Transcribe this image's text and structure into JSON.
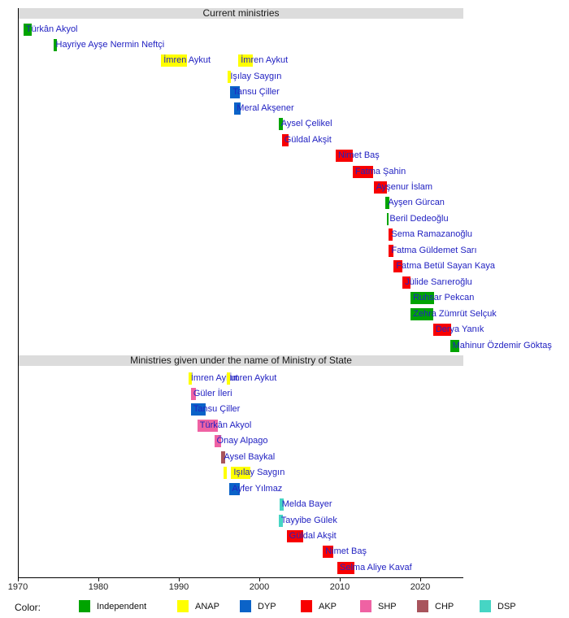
{
  "chart_data": {
    "type": "timeline-gantt",
    "title": "",
    "x_axis": {
      "min": 1970,
      "max": 2025.4,
      "ticks": [
        1970,
        1980,
        1990,
        2000,
        2010,
        2020
      ],
      "grid": false
    },
    "legend": {
      "label": "Color:",
      "position": "bottom",
      "parties": [
        {
          "name": "Independent",
          "color": "#00a400"
        },
        {
          "name": "ANAP",
          "color": "#ffff00"
        },
        {
          "name": "DYP",
          "color": "#0b63c8"
        },
        {
          "name": "AKP",
          "color": "#f80000"
        },
        {
          "name": "SHP",
          "color": "#ef62a3"
        },
        {
          "name": "CHP",
          "color": "#a8545c"
        },
        {
          "name": "DSP",
          "color": "#46d5c4"
        }
      ]
    },
    "sections": [
      {
        "title": "Current ministries",
        "rows": [
          {
            "name": "Türkân Akyol",
            "party": "Independent",
            "bars": [
              {
                "start": 1970.7,
                "end": 1971.7,
                "label": true
              }
            ]
          },
          {
            "name": "Hayriye Ayşe Nermin Neftçi",
            "party": "Independent",
            "bars": [
              {
                "start": 1974.4,
                "end": 1974.9,
                "label": true
              }
            ]
          },
          {
            "name": "İmren Aykut",
            "party": "ANAP",
            "bars": [
              {
                "start": 1987.8,
                "end": 1991.0,
                "label": true
              },
              {
                "start": 1997.4,
                "end": 1999.2,
                "label": true
              }
            ]
          },
          {
            "name": "Işılay Saygın",
            "party": "ANAP",
            "bars": [
              {
                "start": 1996.1,
                "end": 1996.5,
                "label": true
              }
            ]
          },
          {
            "name": "Tansu Çiller",
            "party": "DYP",
            "bars": [
              {
                "start": 1996.4,
                "end": 1997.6,
                "label": true
              }
            ]
          },
          {
            "name": "Meral Akşener",
            "party": "DYP",
            "bars": [
              {
                "start": 1996.9,
                "end": 1997.7,
                "label": true
              }
            ]
          },
          {
            "name": "Aysel Çelikel",
            "party": "Independent",
            "bars": [
              {
                "start": 2002.4,
                "end": 2002.9,
                "label": true
              }
            ]
          },
          {
            "name": "Güldal Akşit",
            "party": "AKP",
            "bars": [
              {
                "start": 2002.8,
                "end": 2003.6,
                "label": true
              }
            ]
          },
          {
            "name": "Nimet Baş",
            "party": "AKP",
            "bars": [
              {
                "start": 2009.5,
                "end": 2011.6,
                "label": true
              }
            ]
          },
          {
            "name": "Fatma Şahin",
            "party": "AKP",
            "bars": [
              {
                "start": 2011.6,
                "end": 2014.1,
                "label": true
              }
            ]
          },
          {
            "name": "Ayşenur İslam",
            "party": "AKP",
            "bars": [
              {
                "start": 2014.2,
                "end": 2015.9,
                "label": true
              }
            ]
          },
          {
            "name": "Ayşen Gürcan",
            "party": "Independent",
            "bars": [
              {
                "start": 2015.7,
                "end": 2016.2,
                "label": true
              }
            ]
          },
          {
            "name": "Beril Dedeoğlu",
            "party": "Independent",
            "bars": [
              {
                "start": 2015.9,
                "end": 2016.1,
                "label": true
              }
            ]
          },
          {
            "name": "Sema Ramazanoğlu",
            "party": "AKP",
            "bars": [
              {
                "start": 2016.1,
                "end": 2016.6,
                "label": true
              }
            ]
          },
          {
            "name": "Fatma Güldemet Sarı",
            "party": "AKP",
            "bars": [
              {
                "start": 2016.1,
                "end": 2016.7,
                "label": true
              }
            ]
          },
          {
            "name": "Fatma Betül Sayan Kaya",
            "party": "AKP",
            "bars": [
              {
                "start": 2016.7,
                "end": 2017.8,
                "label": true
              }
            ]
          },
          {
            "name": "Jülide Sarıeroğlu",
            "party": "AKP",
            "bars": [
              {
                "start": 2017.8,
                "end": 2018.8,
                "label": true
              }
            ]
          },
          {
            "name": "Ruhsar Pekcan",
            "party": "Independent",
            "bars": [
              {
                "start": 2018.8,
                "end": 2021.7,
                "label": true
              }
            ]
          },
          {
            "name": "Zehra Zümrüt Selçuk",
            "party": "Independent",
            "bars": [
              {
                "start": 2018.8,
                "end": 2021.6,
                "label": true
              }
            ]
          },
          {
            "name": "Derya Yanık",
            "party": "AKP",
            "bars": [
              {
                "start": 2021.6,
                "end": 2023.8,
                "label": true
              }
            ]
          },
          {
            "name": "Mahinur Özdemir Göktaş",
            "party": "Independent",
            "bars": [
              {
                "start": 2023.7,
                "end": 2024.8,
                "label": true
              }
            ]
          }
        ]
      },
      {
        "title": "Ministries given under the name of Ministry of State",
        "rows": [
          {
            "name": "İmren Aykut",
            "party": "ANAP",
            "bars": [
              {
                "start": 1991.2,
                "end": 1991.6,
                "label": true
              },
              {
                "start": 1996.0,
                "end": 1996.4,
                "label": true
              }
            ]
          },
          {
            "name": "Güler İleri",
            "party": "SHP",
            "bars": [
              {
                "start": 1991.5,
                "end": 1992.1,
                "label": true
              }
            ]
          },
          {
            "name": "Tansu Çiller",
            "party": "DYP",
            "bars": [
              {
                "start": 1991.5,
                "end": 1993.3,
                "label": true
              }
            ]
          },
          {
            "name": "Türkân Akyol",
            "party": "SHP",
            "bars": [
              {
                "start": 1992.3,
                "end": 1994.8,
                "label": true
              }
            ]
          },
          {
            "name": "Önay Alpago",
            "party": "SHP",
            "bars": [
              {
                "start": 1994.4,
                "end": 1995.3,
                "label": true
              }
            ]
          },
          {
            "name": "Aysel Baykal",
            "party": "CHP",
            "bars": [
              {
                "start": 1995.3,
                "end": 1995.8,
                "label": true
              }
            ]
          },
          {
            "name": "Işılay Saygın",
            "party": "ANAP",
            "bars": [
              {
                "start": 1995.6,
                "end": 1996.0,
                "label": false
              },
              {
                "start": 1996.5,
                "end": 1998.9,
                "label": true
              }
            ]
          },
          {
            "name": "Ayfer Yılmaz",
            "party": "DYP",
            "bars": [
              {
                "start": 1996.3,
                "end": 1997.6,
                "label": true
              }
            ]
          },
          {
            "name": "Melda Bayer",
            "party": "DSP",
            "bars": [
              {
                "start": 2002.5,
                "end": 2003.0,
                "label": true
              }
            ]
          },
          {
            "name": "Tayyibe Gülek",
            "party": "DSP",
            "bars": [
              {
                "start": 2002.4,
                "end": 2002.9,
                "label": true
              }
            ]
          },
          {
            "name": "Güldal Akşit",
            "party": "AKP",
            "bars": [
              {
                "start": 2003.4,
                "end": 2005.5,
                "label": true
              }
            ]
          },
          {
            "name": "Nimet Baş",
            "party": "AKP",
            "bars": [
              {
                "start": 2007.9,
                "end": 2009.2,
                "label": true
              }
            ]
          },
          {
            "name": "Selma Aliye Kavaf",
            "party": "AKP",
            "bars": [
              {
                "start": 2009.7,
                "end": 2011.8,
                "label": true
              }
            ]
          }
        ]
      }
    ]
  }
}
